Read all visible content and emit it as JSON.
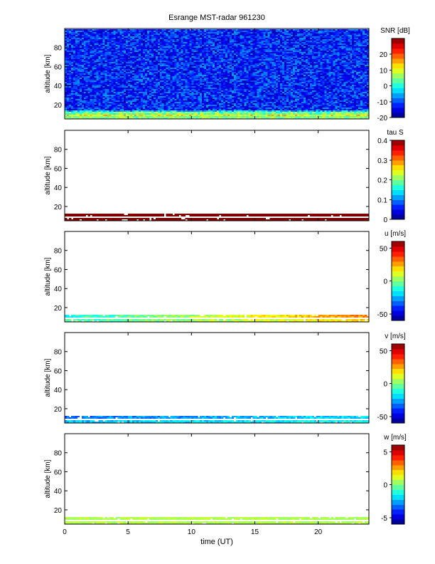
{
  "title": "Esrange MST-radar 961230",
  "xlabel": "time (UT)",
  "chart_data": [
    {
      "type": "heatmap",
      "ylabel": "altitude [km]",
      "colorbar_label": "SNR [dB]",
      "cbar_ticks": [
        -20,
        -10,
        0,
        10,
        20
      ],
      "cbar_range": [
        -20,
        30
      ],
      "xlim": [
        0,
        24
      ],
      "ylim": [
        5,
        100
      ],
      "yticks": [
        20,
        40,
        60,
        80
      ],
      "xticks": [],
      "fill": "full",
      "bands": [
        {
          "alt": [
            5,
            8
          ],
          "value": 5,
          "spread": 4
        },
        {
          "alt": [
            8,
            10
          ],
          "value": 12,
          "spread": 5
        },
        {
          "alt": [
            10,
            12
          ],
          "value": 4,
          "spread": 6
        },
        {
          "alt": [
            12,
            14
          ],
          "value": -4,
          "spread": 6
        }
      ],
      "background": {
        "value": -12,
        "spread": 6
      }
    },
    {
      "type": "heatmap",
      "ylabel": "altitude [km]",
      "colorbar_label": "tau S",
      "cbar_ticks": [
        0,
        0.1,
        0.2,
        0.3,
        0.4
      ],
      "cbar_range": [
        0,
        0.4
      ],
      "xlim": [
        0,
        24
      ],
      "ylim": [
        5,
        100
      ],
      "yticks": [
        20,
        40,
        60,
        80
      ],
      "xticks": [],
      "fill": "bands",
      "bands": [
        {
          "alt": [
            9,
            13
          ],
          "value": 0.4,
          "spread": 0
        },
        {
          "alt": [
            5,
            8
          ],
          "value": 0.4,
          "spread": 0
        }
      ]
    },
    {
      "type": "heatmap",
      "ylabel": "altitude [km]",
      "colorbar_label": "u [m/s]",
      "cbar_ticks": [
        -50,
        0,
        50
      ],
      "cbar_range": [
        -60,
        60
      ],
      "xlim": [
        0,
        24
      ],
      "ylim": [
        5,
        100
      ],
      "yticks": [
        20,
        40,
        60,
        80
      ],
      "xticks": [],
      "fill": "bands",
      "bands": [
        {
          "alt": [
            9,
            13
          ],
          "value": -12,
          "value_end": 30,
          "spread": 8
        },
        {
          "alt": [
            5,
            8
          ],
          "value": -8,
          "value_end": 20,
          "spread": 8
        }
      ]
    },
    {
      "type": "heatmap",
      "ylabel": "altitude [km]",
      "colorbar_label": "v [m/s]",
      "cbar_ticks": [
        -50,
        0,
        50
      ],
      "cbar_range": [
        -60,
        60
      ],
      "xlim": [
        0,
        24
      ],
      "ylim": [
        5,
        100
      ],
      "yticks": [
        20,
        40,
        60,
        80
      ],
      "xticks": [],
      "fill": "bands",
      "bands": [
        {
          "alt": [
            9,
            13
          ],
          "value": -32,
          "value_end": -18,
          "spread": 8
        },
        {
          "alt": [
            5,
            8
          ],
          "value": -22,
          "value_end": -14,
          "spread": 8
        }
      ]
    },
    {
      "type": "heatmap",
      "ylabel": "altitude [km]",
      "colorbar_label": "w [m/s]",
      "cbar_ticks": [
        -5,
        0,
        5
      ],
      "cbar_range": [
        -6,
        6
      ],
      "xlim": [
        0,
        24
      ],
      "ylim": [
        5,
        100
      ],
      "yticks": [
        20,
        40,
        60,
        80
      ],
      "xticks": [
        0,
        5,
        10,
        15,
        20
      ],
      "fill": "bands",
      "bands": [
        {
          "alt": [
            9,
            13
          ],
          "value": 0.6,
          "spread": 0.4
        },
        {
          "alt": [
            5,
            8
          ],
          "value": 0.6,
          "spread": 0.4
        }
      ]
    }
  ]
}
